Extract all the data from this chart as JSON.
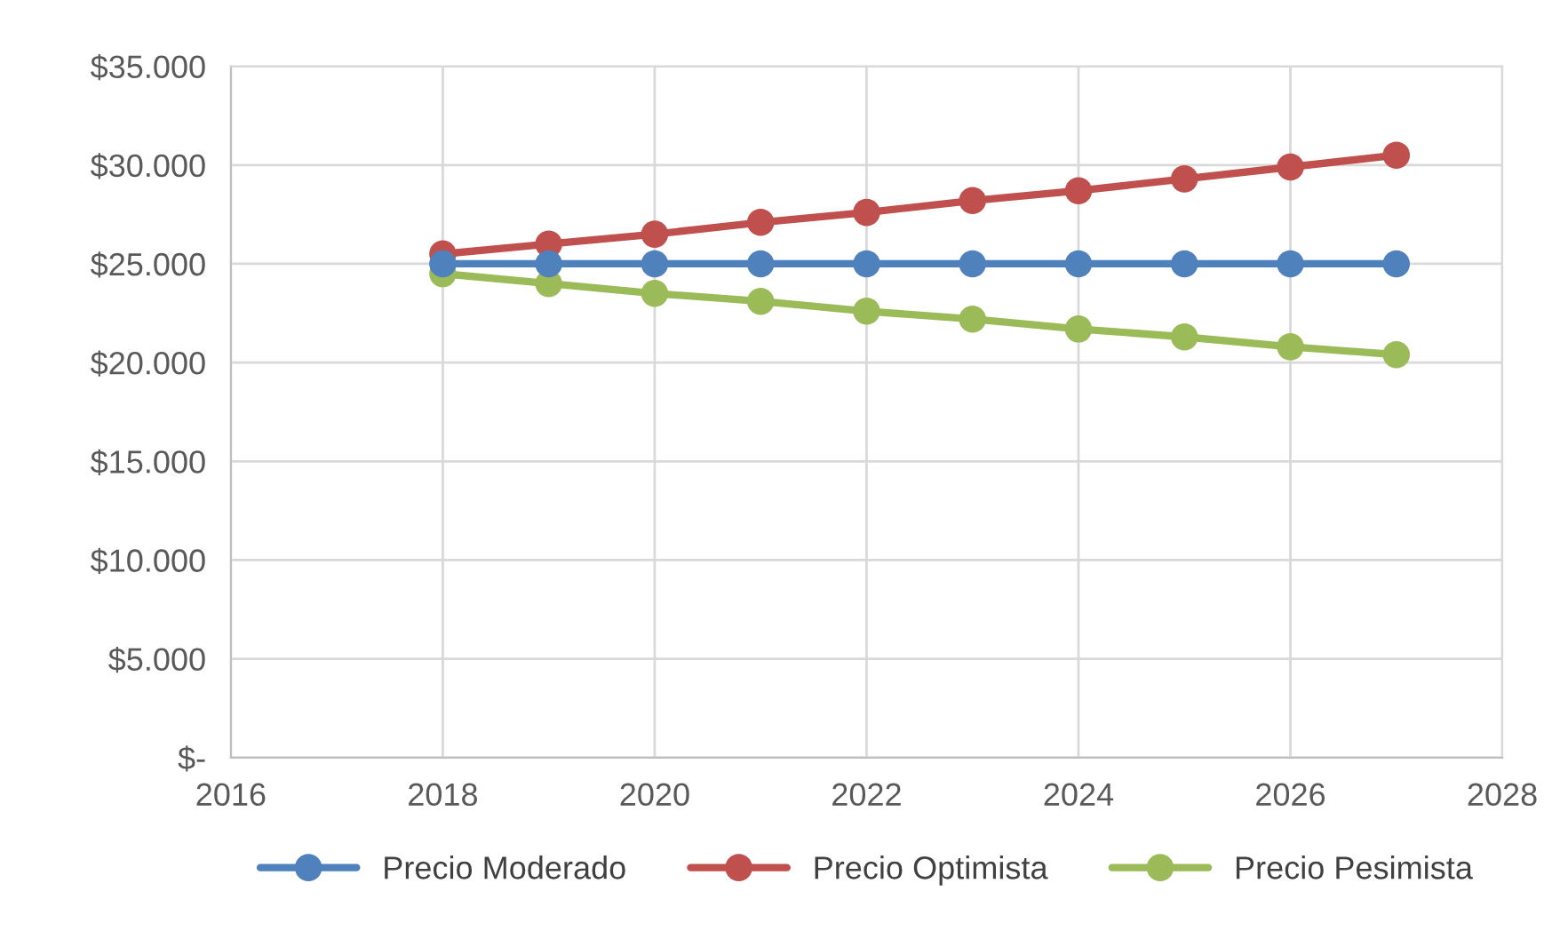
{
  "chart_data": {
    "type": "line",
    "x": [
      2018,
      2019,
      2020,
      2021,
      2022,
      2023,
      2024,
      2025,
      2026,
      2027
    ],
    "series": [
      {
        "name": "Precio Moderado",
        "color": "#4f81bd",
        "values": [
          25000,
          25000,
          25000,
          25000,
          25000,
          25000,
          25000,
          25000,
          25000,
          25000
        ]
      },
      {
        "name": "Precio Optimista",
        "color": "#c0504d",
        "values": [
          25500,
          26000,
          26500,
          27100,
          27600,
          28200,
          28700,
          29300,
          29900,
          30500
        ]
      },
      {
        "name": "Precio Pesimista",
        "color": "#9bbb59",
        "values": [
          24500,
          24000,
          23500,
          23100,
          22600,
          22200,
          21700,
          21300,
          20800,
          20400
        ]
      }
    ],
    "xlim": [
      2016,
      2028
    ],
    "xticks": [
      2016,
      2018,
      2020,
      2022,
      2024,
      2026,
      2028
    ],
    "ylim": [
      0,
      35000
    ],
    "yticks": [
      {
        "value": 0,
        "label": "$-"
      },
      {
        "value": 5000,
        "label": "$5.000"
      },
      {
        "value": 10000,
        "label": "$10.000"
      },
      {
        "value": 15000,
        "label": "$15.000"
      },
      {
        "value": 20000,
        "label": "$20.000"
      },
      {
        "value": 25000,
        "label": "$25.000"
      },
      {
        "value": 30000,
        "label": "$30.000"
      },
      {
        "value": 35000,
        "label": "$35.000"
      }
    ],
    "grid": true,
    "legend": "bottom",
    "marker": "circle",
    "line_style": "solid"
  }
}
